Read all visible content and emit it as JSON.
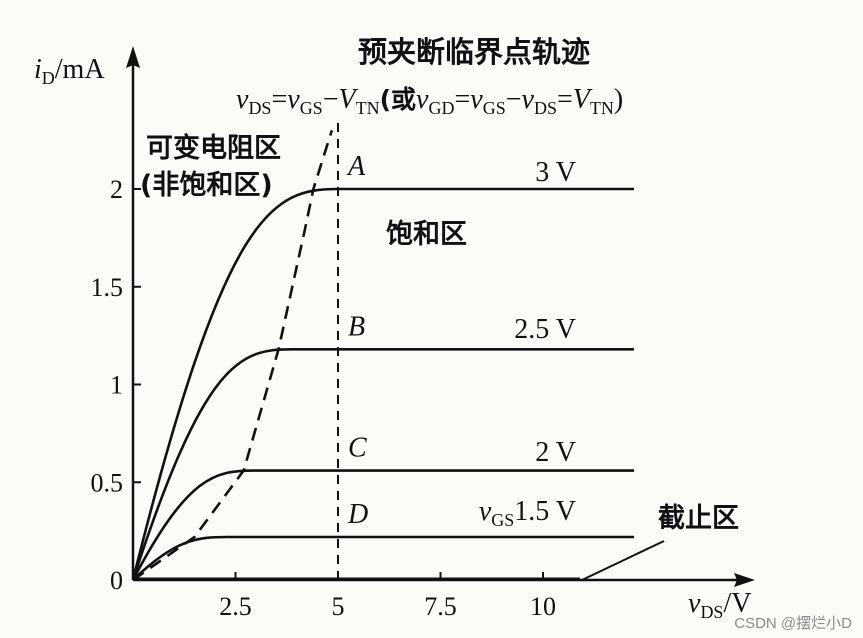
{
  "chart_data": {
    "type": "line",
    "title": "预夹断临界点轨迹",
    "ylabel_main": "i",
    "ylabel_sub": "D",
    "ylabel_unit": "/mA",
    "xlabel_main": "v",
    "xlabel_sub": "DS",
    "xlabel_unit": "/V",
    "xlim": [
      0,
      15
    ],
    "ylim": [
      0,
      2.5
    ],
    "x_ticks": [
      {
        "value": 2.5,
        "label": "2.5"
      },
      {
        "value": 5,
        "label": "5"
      },
      {
        "value": 7.5,
        "label": "7.5"
      },
      {
        "value": 10,
        "label": "10"
      }
    ],
    "y_ticks": [
      {
        "value": 0.5,
        "label": "0.5"
      },
      {
        "value": 1,
        "label": "1"
      },
      {
        "value": 1.5,
        "label": "1.5"
      },
      {
        "value": 2,
        "label": "2"
      }
    ],
    "origin_label": "0",
    "boundary_x": 5,
    "curves": [
      {
        "point": "A",
        "vgs_label": "3 V",
        "isat": 2.0,
        "vsat": 5.0
      },
      {
        "point": "B",
        "vgs_label": "2.5 V",
        "isat": 1.18,
        "vsat": 3.85
      },
      {
        "point": "C",
        "vgs_label": "2 V",
        "isat": 0.56,
        "vsat": 2.95
      },
      {
        "point": "D",
        "vgs_label": "v_GS=1.5 V",
        "isat": 0.22,
        "vsat": 2.3
      }
    ],
    "cutoff_level": 0.0,
    "cutoff_xmax": 10.9,
    "locus": [
      [
        0,
        0
      ],
      [
        1.5,
        0.22
      ],
      [
        2.7,
        0.56
      ],
      [
        3.55,
        1.18
      ],
      [
        4.2,
        1.8
      ],
      [
        4.4,
        2.0
      ],
      [
        4.85,
        2.3
      ]
    ]
  },
  "labels": {
    "title": "预夹断临界点轨迹",
    "formula_parts": [
      {
        "t": "v",
        "i": true
      },
      {
        "t": "DS",
        "sub": true
      },
      {
        "t": "=",
        "i": false
      },
      {
        "t": "v",
        "i": true
      },
      {
        "t": "GS",
        "sub": true
      },
      {
        "t": "−",
        "i": false
      },
      {
        "t": "V",
        "i": true
      },
      {
        "t": "TN",
        "sub": true
      },
      {
        "t": "(或",
        "i": false
      },
      {
        "t": "v",
        "i": true
      },
      {
        "t": "GD",
        "sub": true
      },
      {
        "t": "=",
        "i": false
      },
      {
        "t": "v",
        "i": true
      },
      {
        "t": "GS",
        "sub": true
      },
      {
        "t": "−",
        "i": false
      },
      {
        "t": "v",
        "i": true
      },
      {
        "t": "DS",
        "sub": true
      },
      {
        "t": "=",
        "i": false
      },
      {
        "t": "V",
        "i": true
      },
      {
        "t": "TN",
        "sub": true
      },
      {
        "t": ")",
        "i": false
      }
    ],
    "region_variable_line1": "可变电阻区",
    "region_variable_line2": "(非饱和区)",
    "region_saturation": "饱和区",
    "region_cutoff": "截止区",
    "watermark": "CSDN @摆烂小D"
  }
}
